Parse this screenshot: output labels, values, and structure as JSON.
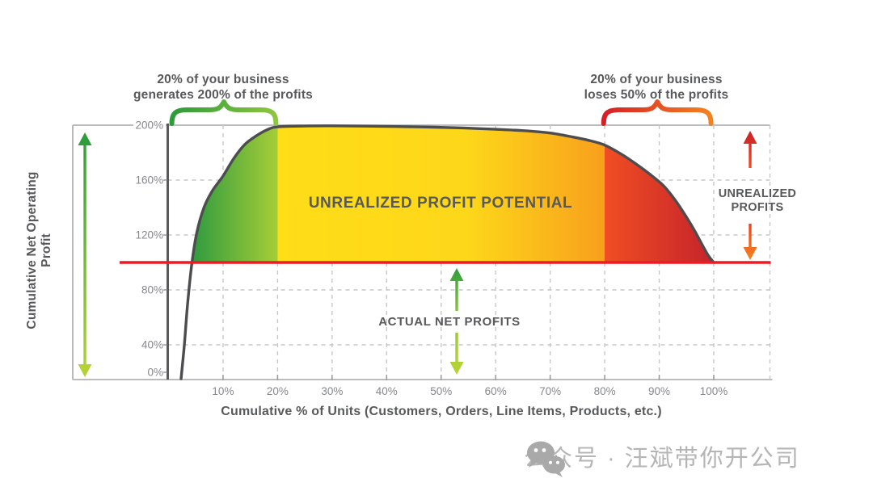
{
  "annotations": {
    "left_brace_label": {
      "line1": "20% of your business",
      "line2": "generates 200% of the profits"
    },
    "right_brace_label": {
      "line1": "20% of your business",
      "line2": "loses 50% of the profits"
    },
    "area_label": "UNREALIZED PROFIT POTENTIAL",
    "baseline_label": "ACTUAL NET PROFITS",
    "right_gap_label": {
      "line1": "UNREALIZED",
      "line2": "PROFITS"
    }
  },
  "axes": {
    "y_title": "Cumulative Net Operating Profit",
    "x_title": "Cumulative % of Units (Customers, Orders, Line Items, Products, etc.)"
  },
  "watermark": {
    "text": "公众号 · 汪斌带你开公司",
    "icon": "wechat-icon"
  },
  "colors": {
    "text_dark": "#58595b",
    "tick_label": "#85878a",
    "curve_stroke": "#4d4d4f",
    "baseline_red": "#ec1c24",
    "frame": "#b0b2b5",
    "grid": "#c6c7c9",
    "tick_mark": "#9a9b9e",
    "green_dark": "#2f9b3f",
    "green_light": "#a6cd38",
    "yellow": "#ffdd17",
    "orange": "#f8a01c",
    "red_orange": "#ef4e23",
    "red_dark": "#c5232b",
    "brace_green_1": "#2d9a3a",
    "brace_green_2": "#8dc63f",
    "brace_red_1": "#d51f27",
    "brace_red_2": "#f58220",
    "arrow_green_1": "#2f9e3a",
    "arrow_green_2": "#b4d233",
    "arrow_lime_1": "#9bc939",
    "arrow_lime_2": "#b9d434",
    "arrow_red_1": "#c92128",
    "arrow_red_2": "#f04b23",
    "arrow_orange_1": "#ee4423",
    "arrow_orange_2": "#f58220",
    "watermark": "#a9a9a9"
  },
  "chart_data": {
    "type": "area",
    "title": "",
    "xlabel": "Cumulative % of Units (Customers, Orders, Line Items, Products, etc.)",
    "ylabel": "Cumulative Net Operating Profit",
    "xlim": [
      0,
      110
    ],
    "ylim": [
      0,
      200
    ],
    "grid": "dashed",
    "legend": "none",
    "x_tick_values": [
      10,
      20,
      30,
      40,
      50,
      60,
      70,
      80,
      90,
      100
    ],
    "y_tick_values": [
      200,
      160,
      120,
      80,
      40,
      0
    ],
    "baseline_pct": 100,
    "series": [
      {
        "name": "cumulative-net-operating-profit",
        "points": [
          [
            2.3,
            0
          ],
          [
            2.9,
            40
          ],
          [
            3.5,
            70
          ],
          [
            4.3,
            100
          ],
          [
            5.2,
            122
          ],
          [
            6.5,
            140
          ],
          [
            8,
            152
          ],
          [
            10,
            163
          ],
          [
            12,
            176
          ],
          [
            14,
            186
          ],
          [
            16,
            192
          ],
          [
            18,
            196.5
          ],
          [
            20,
            198.8
          ],
          [
            25,
            199.4
          ],
          [
            30,
            199.5
          ],
          [
            36,
            199.3
          ],
          [
            42,
            199
          ],
          [
            48,
            198.6
          ],
          [
            54,
            198
          ],
          [
            60,
            197
          ],
          [
            66,
            195.8
          ],
          [
            70,
            194.3
          ],
          [
            74,
            191.5
          ],
          [
            77,
            189
          ],
          [
            80,
            185.5
          ],
          [
            83,
            179
          ],
          [
            86,
            171
          ],
          [
            89,
            162
          ],
          [
            91,
            155
          ],
          [
            93,
            145
          ],
          [
            95,
            133
          ],
          [
            96.5,
            123
          ],
          [
            98,
            112
          ],
          [
            99,
            105
          ],
          [
            100,
            100
          ]
        ]
      }
    ],
    "regions": [
      {
        "name": "top-20pct-generates-200pct",
        "range_pct": [
          0,
          20
        ],
        "gradient": [
          "#2f9b3f",
          "#a6cd38"
        ]
      },
      {
        "name": "unrealized-profit-potential",
        "range_pct": [
          20,
          80
        ],
        "gradient": [
          "#ffdd17",
          "#f8a01c"
        ]
      },
      {
        "name": "bottom-20pct-loses-50pct",
        "range_pct": [
          80,
          100
        ],
        "gradient": [
          "#ef4e23",
          "#c5232b"
        ]
      }
    ]
  }
}
